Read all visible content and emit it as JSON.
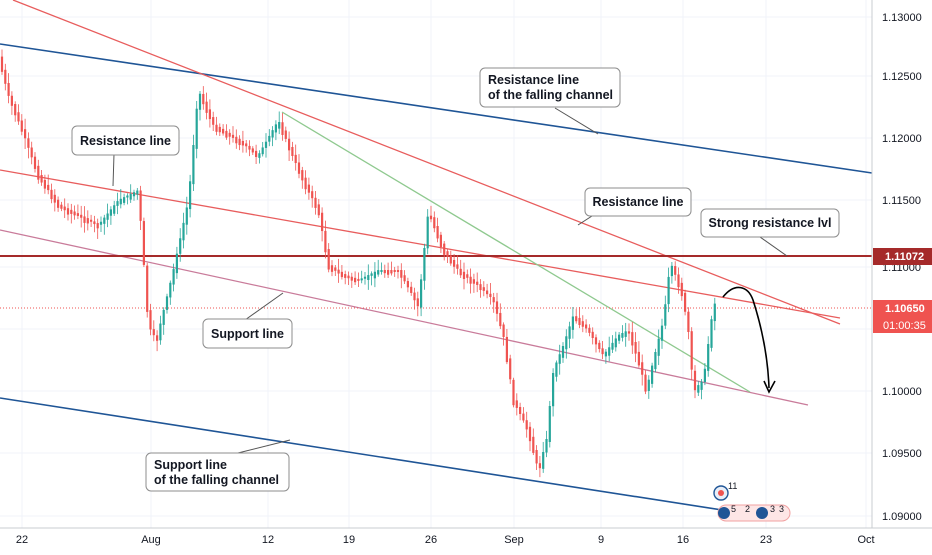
{
  "chart_data": {
    "type": "candlestick",
    "instrument_hint": "EUR/USD daily-like price chart with drawn trend lines",
    "x_axis_labels": [
      "22",
      "Aug",
      "12",
      "19",
      "26",
      "Sep",
      "9",
      "16",
      "23",
      "Oct"
    ],
    "y_axis_labels": [
      "1.13000",
      "1.12500",
      "1.12000",
      "1.11500",
      "1.11000",
      "1.10500",
      "1.10000",
      "1.09500",
      "1.09000"
    ],
    "y_range": [
      1.0888,
      1.1315
    ],
    "price_tags": [
      {
        "text": "1.11072",
        "bg": "#a52a2a",
        "fg": "#ffffff",
        "price": 1.11072
      },
      {
        "text": "1.10650",
        "bg": "#ef5350",
        "fg": "#ffffff",
        "price": 1.1065
      },
      {
        "text": "01:00:35",
        "bg": "#ef5350",
        "fg": "#ffffff",
        "price": 1.10585
      }
    ],
    "annotations": [
      {
        "id": "resistance-line-top",
        "text": [
          "Resistance line"
        ]
      },
      {
        "id": "resistance-falling-channel",
        "text": [
          "Resistance line",
          "of the falling channel"
        ]
      },
      {
        "id": "resistance-line-mid",
        "text": [
          "Resistance line"
        ]
      },
      {
        "id": "strong-resistance",
        "text": [
          "Strong resistance lvl"
        ]
      },
      {
        "id": "support-line",
        "text": [
          "Support line"
        ]
      },
      {
        "id": "support-falling-channel",
        "text": [
          "Support line",
          "of the falling channel"
        ]
      }
    ],
    "event_markers": [
      "11",
      "5",
      "2",
      "3",
      "3"
    ],
    "colors": {
      "up": "#26a69a",
      "down": "#ef5350",
      "channel": "#1f5596",
      "resistance": "#e85d5d",
      "support": "#c97b9a",
      "green_trend": "#8fc98f",
      "strong_level": "#a52a2a",
      "grid": "#f0f3fa",
      "axis_text": "#131722"
    }
  }
}
